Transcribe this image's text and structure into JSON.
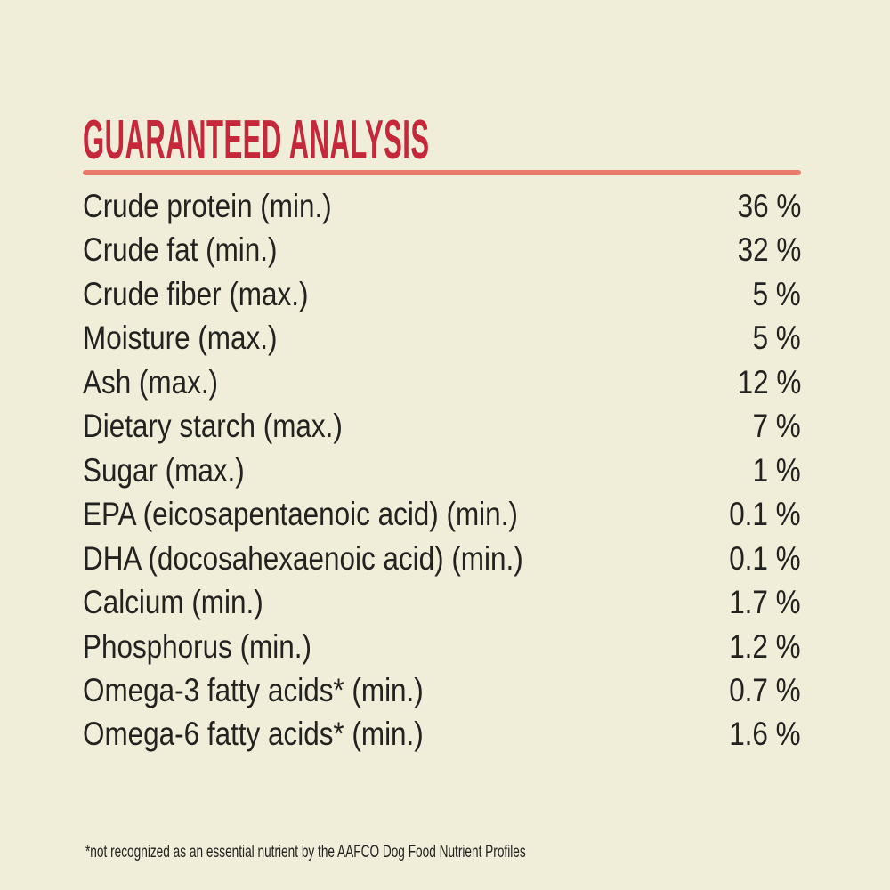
{
  "colors": {
    "bg": "#f0eed9",
    "title": "#c5283a",
    "divider": "#e87a6c",
    "text": "#232220"
  },
  "label": {
    "title": "GUARANTEED ANALYSIS",
    "rows": [
      {
        "label": "Crude protein (min.)",
        "value": "36 %"
      },
      {
        "label": "Crude fat (min.)",
        "value": "32 %"
      },
      {
        "label": "Crude fiber (max.)",
        "value": "5 %"
      },
      {
        "label": "Moisture (max.)",
        "value": "5 %"
      },
      {
        "label": "Ash (max.)",
        "value": "12 %"
      },
      {
        "label": "Dietary starch (max.)",
        "value": "7 %"
      },
      {
        "label": "Sugar (max.)",
        "value": "1 %"
      },
      {
        "label": "EPA (eicosapentaenoic acid) (min.)",
        "value": "0.1 %"
      },
      {
        "label": "DHA (docosahexaenoic acid) (min.)",
        "value": "0.1 %"
      },
      {
        "label": "Calcium (min.)",
        "value": "1.7 %"
      },
      {
        "label": "Phosphorus (min.)",
        "value": "1.2 %"
      },
      {
        "label": "Omega-3 fatty acids* (min.)",
        "value": "0.7 %"
      },
      {
        "label": "Omega-6 fatty acids* (min.)",
        "value": "1.6 %"
      }
    ],
    "footnote": "*not recognized as an essential nutrient by the AAFCO Dog Food Nutrient Profiles"
  }
}
